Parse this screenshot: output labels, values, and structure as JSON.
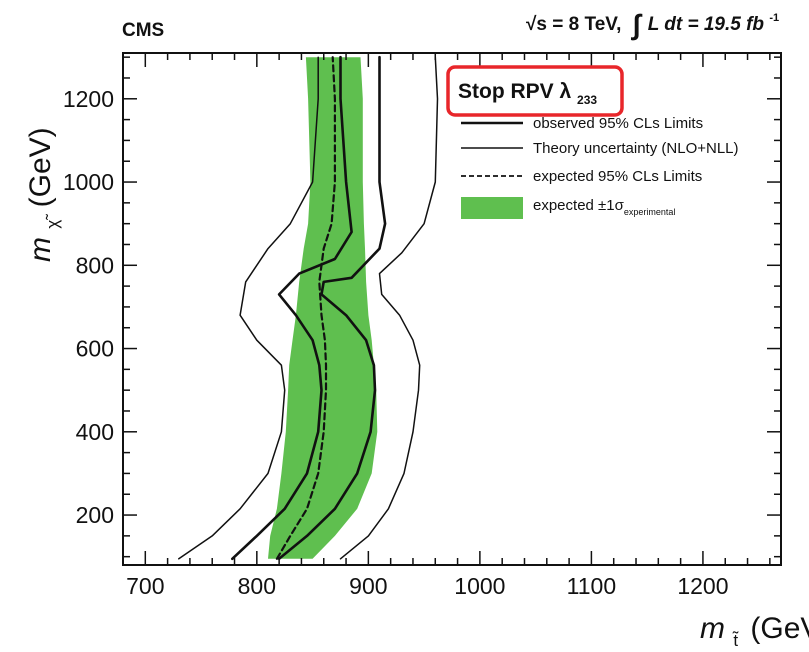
{
  "header": {
    "experiment": "CMS",
    "energy": "√s = 8 TeV,",
    "lumi_integral": "∫",
    "lumi_expr": "L dt = 19.5 fb",
    "lumi_exp": "-1"
  },
  "chart_data": {
    "type": "line",
    "title": "Stop RPV λ",
    "title_sub": "233",
    "xlabel": "m",
    "xlabel_sub": "t̃",
    "xlabel_unit": "(GeV)",
    "ylabel": "m",
    "ylabel_sub": "χ̃",
    "ylabel_unit": "(GeV)",
    "xlim": [
      680,
      1270
    ],
    "ylim": [
      80,
      1310
    ],
    "xticks": [
      700,
      800,
      900,
      1000,
      1100,
      1200
    ],
    "xtick_labels": [
      "700",
      "800",
      "900",
      "1000",
      "1100",
      "1200"
    ],
    "yticks": [
      200,
      400,
      600,
      800,
      1000,
      1200
    ],
    "ytick_labels": [
      "200",
      "400",
      "600",
      "800",
      "1000",
      "1200"
    ],
    "legend_position": "top-right",
    "legend": [
      {
        "label": "observed 95% CLs Limits",
        "style": "solid-thick"
      },
      {
        "label": "Theory uncertainty (NLO+NLL)",
        "style": "solid-thin"
      },
      {
        "label": "expected 95% CLs Limits",
        "style": "dashed"
      },
      {
        "label": "expected ±1σ",
        "sub": "experimental",
        "style": "band"
      }
    ],
    "colors": {
      "band": "#5fbf4f",
      "highlight": "#e8262a",
      "line": "#111111"
    },
    "series": [
      {
        "name": "observed 95% CLs Limits",
        "style": "solid-thick",
        "points": [
          [
            778,
            95
          ],
          [
            800,
            150
          ],
          [
            825,
            215
          ],
          [
            845,
            300
          ],
          [
            855,
            400
          ],
          [
            858,
            500
          ],
          [
            856,
            560
          ],
          [
            850,
            620
          ],
          [
            835,
            680
          ],
          [
            820,
            730
          ],
          [
            838,
            780
          ],
          [
            870,
            815
          ],
          [
            885,
            880
          ],
          [
            880,
            1000
          ],
          [
            875,
            1200
          ],
          [
            875,
            1300
          ]
        ]
      },
      {
        "name": "Theory uncertainty (NLO+NLL)",
        "style": "solid-thick",
        "points": [
          [
            820,
            95
          ],
          [
            845,
            150
          ],
          [
            870,
            215
          ],
          [
            890,
            300
          ],
          [
            902,
            400
          ],
          [
            906,
            500
          ],
          [
            905,
            560
          ],
          [
            898,
            620
          ],
          [
            880,
            680
          ],
          [
            858,
            730
          ],
          [
            860,
            760
          ],
          [
            885,
            770
          ],
          [
            910,
            840
          ],
          [
            915,
            900
          ],
          [
            910,
            1000
          ],
          [
            910,
            1200
          ],
          [
            910,
            1300
          ]
        ]
      },
      {
        "name": "Theory uncertainty (NLO+NLL)",
        "style": "solid-thin",
        "points": [
          [
            730,
            95
          ],
          [
            760,
            150
          ],
          [
            785,
            215
          ],
          [
            810,
            300
          ],
          [
            822,
            400
          ],
          [
            825,
            500
          ],
          [
            822,
            560
          ],
          [
            800,
            620
          ],
          [
            785,
            680
          ],
          [
            790,
            760
          ],
          [
            810,
            840
          ],
          [
            830,
            900
          ],
          [
            850,
            1000
          ],
          [
            855,
            1200
          ],
          [
            855,
            1300
          ]
        ]
      },
      {
        "name": "Theory uncertainty (NLO+NLL)",
        "style": "solid-thin",
        "points": [
          [
            875,
            95
          ],
          [
            900,
            150
          ],
          [
            918,
            215
          ],
          [
            932,
            300
          ],
          [
            940,
            400
          ],
          [
            945,
            500
          ],
          [
            946,
            560
          ],
          [
            940,
            620
          ],
          [
            928,
            680
          ],
          [
            912,
            730
          ],
          [
            910,
            780
          ],
          [
            930,
            830
          ],
          [
            950,
            900
          ],
          [
            960,
            1000
          ],
          [
            962,
            1200
          ],
          [
            960,
            1300
          ]
        ]
      },
      {
        "name": "expected 95% CLs Limits",
        "style": "dashed",
        "points": [
          [
            818,
            95
          ],
          [
            830,
            150
          ],
          [
            845,
            215
          ],
          [
            855,
            300
          ],
          [
            860,
            400
          ],
          [
            862,
            500
          ],
          [
            862,
            560
          ],
          [
            861,
            620
          ],
          [
            858,
            680
          ],
          [
            856,
            760
          ],
          [
            860,
            840
          ],
          [
            867,
            900
          ],
          [
            870,
            1000
          ],
          [
            870,
            1200
          ],
          [
            868,
            1300
          ]
        ]
      },
      {
        "name": "expected ±1σ experimental (lower edge)",
        "style": "band-low",
        "points": [
          [
            810,
            95
          ],
          [
            812,
            150
          ],
          [
            818,
            215
          ],
          [
            822,
            300
          ],
          [
            826,
            400
          ],
          [
            828,
            500
          ],
          [
            829,
            560
          ],
          [
            832,
            620
          ],
          [
            835,
            680
          ],
          [
            838,
            760
          ],
          [
            842,
            840
          ],
          [
            846,
            900
          ],
          [
            848,
            1000
          ],
          [
            846,
            1200
          ],
          [
            844,
            1300
          ]
        ]
      },
      {
        "name": "expected ±1σ experimental (upper edge)",
        "style": "band-high",
        "points": [
          [
            850,
            95
          ],
          [
            870,
            150
          ],
          [
            890,
            215
          ],
          [
            903,
            300
          ],
          [
            908,
            400
          ],
          [
            907,
            500
          ],
          [
            905,
            560
          ],
          [
            903,
            620
          ],
          [
            900,
            680
          ],
          [
            898,
            760
          ],
          [
            897,
            840
          ],
          [
            896,
            900
          ],
          [
            895,
            1000
          ],
          [
            895,
            1200
          ],
          [
            893,
            1300
          ]
        ]
      }
    ]
  }
}
